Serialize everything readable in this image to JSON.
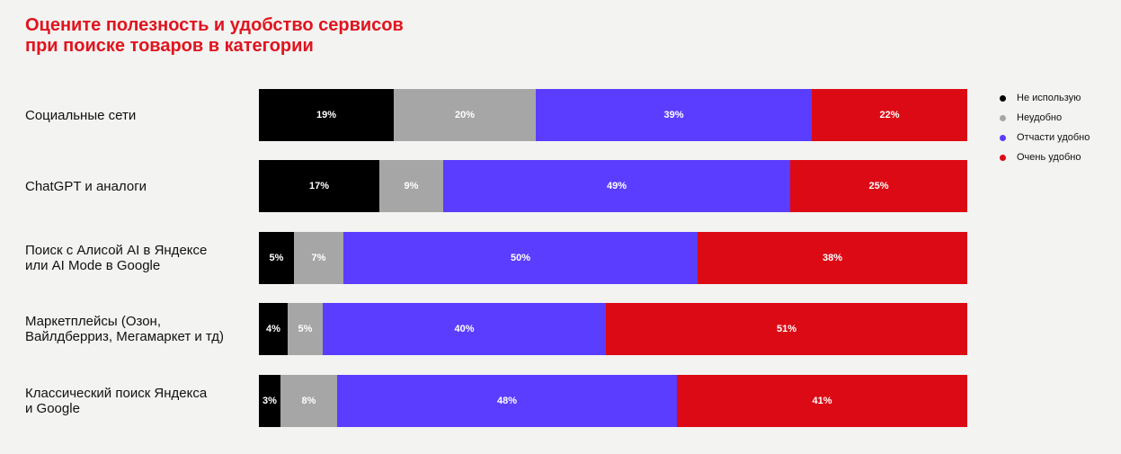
{
  "colors": {
    "title": "#e0141e",
    "background": "#f3f3f1",
    "series": [
      "#000000",
      "#a6a6a6",
      "#5a3dff",
      "#dc0a14"
    ]
  },
  "title_lines": [
    "Оцените полезность и удобство сервисов",
    "при поиске товаров в категории"
  ],
  "legend": [
    {
      "label": "Не использую",
      "color": "#000000"
    },
    {
      "label": "Неудобно",
      "color": "#a6a6a6"
    },
    {
      "label": "Отчасти удобно",
      "color": "#5a3dff"
    },
    {
      "label": "Очень удобно",
      "color": "#dc0a14"
    }
  ],
  "chart_data": {
    "type": "bar",
    "orientation": "horizontal",
    "stacked": true,
    "normalized": true,
    "title": "Оцените полезность и удобство сервисов при поиске товаров в категории",
    "legend_position": "right",
    "categories": [
      [
        "Социальные сети"
      ],
      [
        "ChatGPT и аналоги"
      ],
      [
        "Поиск с Алисой AI в Яндексе",
        "или AI Mode в Google"
      ],
      [
        "Маркетплейсы (Озон,",
        "Вайлдберриз, Мегамаркет и тд)"
      ],
      [
        "Классический поиск Яндекса",
        "и Google"
      ]
    ],
    "series": [
      {
        "name": "Не использую",
        "values": [
          19,
          17,
          5,
          4,
          3
        ],
        "labels": [
          "19%",
          "17%",
          "5%",
          "4%",
          "3%"
        ]
      },
      {
        "name": "Неудобно",
        "values": [
          20,
          9,
          7,
          5,
          8
        ],
        "labels": [
          "20%",
          "9%",
          "7%",
          "5%",
          "8%"
        ]
      },
      {
        "name": "Отчасти удобно",
        "values": [
          39,
          49,
          50,
          40,
          48
        ],
        "labels": [
          "39%",
          "49%",
          "50%",
          "40%",
          "48%"
        ]
      },
      {
        "name": "Очень удобно",
        "values": [
          22,
          25,
          38,
          51,
          41
        ],
        "labels": [
          "22%",
          "25%",
          "38%",
          "51%",
          "41%"
        ]
      }
    ]
  }
}
